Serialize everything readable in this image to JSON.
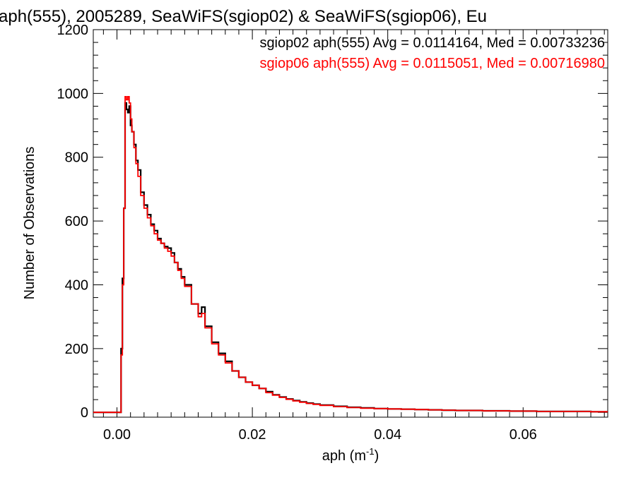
{
  "chart_data": {
    "type": "line",
    "title": "aph(555), 2005289, SeaWiFS(sgiop02) & SeaWiFS(sgiop06), Eu",
    "xlabel": "aph (m",
    "xlabel_superscript": "-1",
    "xlabel_suffix": ")",
    "ylabel": "Number of Observations",
    "xlim": [
      -0.0035,
      0.0725
    ],
    "ylim": [
      -15,
      1200
    ],
    "x_ticks": [
      0.0,
      0.02,
      0.04,
      0.06
    ],
    "x_tick_labels": [
      "0.00",
      "0.02",
      "0.04",
      "0.06"
    ],
    "y_ticks": [
      0,
      200,
      400,
      600,
      800,
      1000,
      1200
    ],
    "y_tick_labels": [
      "0",
      "200",
      "400",
      "600",
      "800",
      "1000",
      "1200"
    ],
    "grid": false,
    "annotations": [
      {
        "text": "sgiop02 aph(555) Avg = 0.0114164, Med = 0.00733236",
        "color": "#000000"
      },
      {
        "text": "sgiop06 aph(555) Avg = 0.0115051, Med = 0.00716980",
        "color": "#ff0000"
      }
    ],
    "series": [
      {
        "color": "#000000",
        "points": [
          [
            -0.0035,
            0
          ],
          [
            0.0003,
            0
          ],
          [
            0.0006,
            200
          ],
          [
            0.0008,
            420
          ],
          [
            0.001,
            640
          ],
          [
            0.0012,
            970
          ],
          [
            0.0014,
            950
          ],
          [
            0.0016,
            940
          ],
          [
            0.0018,
            960
          ],
          [
            0.002,
            900
          ],
          [
            0.0022,
            880
          ],
          [
            0.0025,
            840
          ],
          [
            0.0028,
            790
          ],
          [
            0.0031,
            760
          ],
          [
            0.0035,
            690
          ],
          [
            0.004,
            650
          ],
          [
            0.0045,
            620
          ],
          [
            0.005,
            590
          ],
          [
            0.0055,
            570
          ],
          [
            0.006,
            545
          ],
          [
            0.0065,
            530
          ],
          [
            0.007,
            520
          ],
          [
            0.0075,
            515
          ],
          [
            0.008,
            500
          ],
          [
            0.0085,
            470
          ],
          [
            0.009,
            450
          ],
          [
            0.0095,
            425
          ],
          [
            0.01,
            400
          ],
          [
            0.011,
            340
          ],
          [
            0.012,
            310
          ],
          [
            0.0125,
            330
          ],
          [
            0.013,
            270
          ],
          [
            0.014,
            220
          ],
          [
            0.015,
            185
          ],
          [
            0.016,
            160
          ],
          [
            0.017,
            130
          ],
          [
            0.018,
            110
          ],
          [
            0.019,
            95
          ],
          [
            0.02,
            85
          ],
          [
            0.021,
            75
          ],
          [
            0.022,
            65
          ],
          [
            0.023,
            55
          ],
          [
            0.024,
            48
          ],
          [
            0.025,
            42
          ],
          [
            0.026,
            37
          ],
          [
            0.027,
            33
          ],
          [
            0.028,
            29
          ],
          [
            0.029,
            26
          ],
          [
            0.03,
            23
          ],
          [
            0.032,
            19
          ],
          [
            0.034,
            16
          ],
          [
            0.036,
            14
          ],
          [
            0.038,
            12
          ],
          [
            0.04,
            11
          ],
          [
            0.042,
            10
          ],
          [
            0.044,
            9
          ],
          [
            0.046,
            8
          ],
          [
            0.048,
            7
          ],
          [
            0.05,
            6
          ],
          [
            0.054,
            5
          ],
          [
            0.058,
            4
          ],
          [
            0.062,
            3
          ],
          [
            0.066,
            3
          ],
          [
            0.07,
            2
          ],
          [
            0.0725,
            2
          ]
        ]
      },
      {
        "color": "#ff0000",
        "points": [
          [
            -0.0035,
            0
          ],
          [
            0.0003,
            0
          ],
          [
            0.0006,
            180
          ],
          [
            0.0008,
            400
          ],
          [
            0.001,
            640
          ],
          [
            0.0012,
            990
          ],
          [
            0.0014,
            980
          ],
          [
            0.0016,
            990
          ],
          [
            0.0018,
            970
          ],
          [
            0.002,
            920
          ],
          [
            0.0022,
            880
          ],
          [
            0.0025,
            830
          ],
          [
            0.0028,
            780
          ],
          [
            0.0031,
            740
          ],
          [
            0.0035,
            680
          ],
          [
            0.004,
            640
          ],
          [
            0.0045,
            610
          ],
          [
            0.005,
            585
          ],
          [
            0.0055,
            560
          ],
          [
            0.006,
            540
          ],
          [
            0.0065,
            530
          ],
          [
            0.007,
            515
          ],
          [
            0.0075,
            505
          ],
          [
            0.008,
            490
          ],
          [
            0.0085,
            470
          ],
          [
            0.009,
            445
          ],
          [
            0.0095,
            420
          ],
          [
            0.01,
            395
          ],
          [
            0.011,
            340
          ],
          [
            0.012,
            300
          ],
          [
            0.0125,
            310
          ],
          [
            0.013,
            265
          ],
          [
            0.014,
            215
          ],
          [
            0.015,
            180
          ],
          [
            0.016,
            155
          ],
          [
            0.017,
            130
          ],
          [
            0.018,
            110
          ],
          [
            0.019,
            95
          ],
          [
            0.02,
            85
          ],
          [
            0.021,
            75
          ],
          [
            0.022,
            62
          ],
          [
            0.023,
            54
          ],
          [
            0.024,
            47
          ],
          [
            0.025,
            41
          ],
          [
            0.026,
            36
          ],
          [
            0.027,
            32
          ],
          [
            0.028,
            28
          ],
          [
            0.029,
            25
          ],
          [
            0.03,
            22
          ],
          [
            0.032,
            18
          ],
          [
            0.034,
            15
          ],
          [
            0.036,
            13
          ],
          [
            0.038,
            12
          ],
          [
            0.04,
            11
          ],
          [
            0.042,
            10
          ],
          [
            0.044,
            9
          ],
          [
            0.046,
            8
          ],
          [
            0.048,
            7
          ],
          [
            0.05,
            6
          ],
          [
            0.054,
            5
          ],
          [
            0.058,
            4
          ],
          [
            0.062,
            3
          ],
          [
            0.066,
            3
          ],
          [
            0.07,
            2
          ],
          [
            0.0725,
            2
          ]
        ]
      }
    ]
  }
}
